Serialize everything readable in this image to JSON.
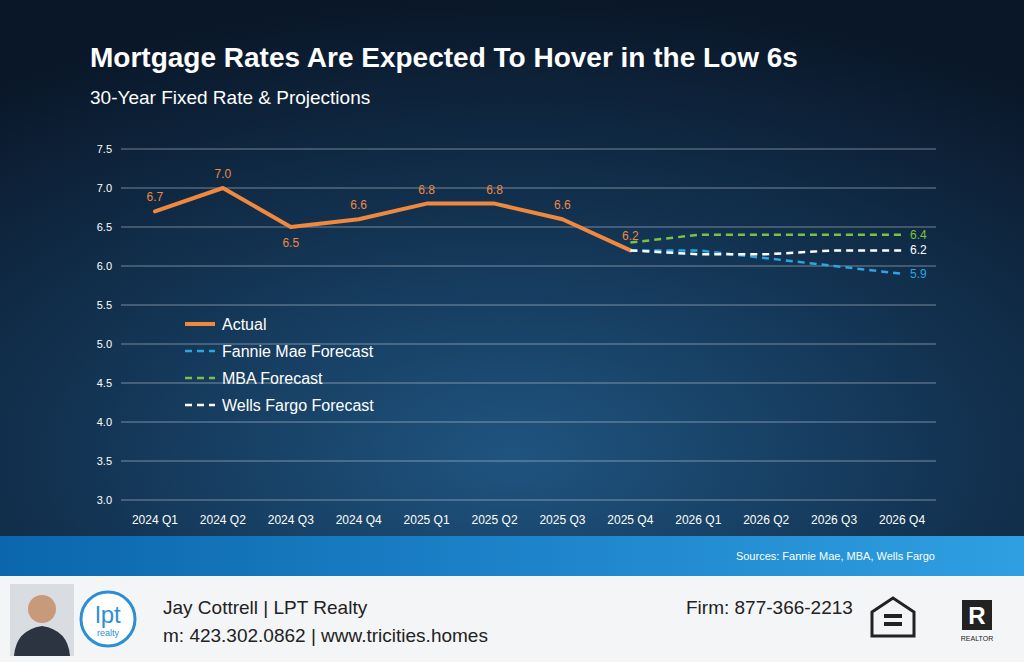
{
  "chart_data": {
    "type": "line",
    "title": "Mortgage Rates Are Expected To Hover in the Low 6s",
    "subtitle": "30-Year Fixed Rate & Projections",
    "categories": [
      "2024 Q1",
      "2024 Q2",
      "2024 Q3",
      "2024 Q4",
      "2025 Q1",
      "2025 Q2",
      "2025 Q3",
      "2025 Q4",
      "2026 Q1",
      "2026 Q2",
      "2026 Q3",
      "2026 Q4"
    ],
    "series": [
      {
        "name": "Actual",
        "color": "#f0883e",
        "line_style": "solid",
        "values": [
          6.7,
          7.0,
          6.5,
          6.6,
          6.8,
          6.8,
          6.6,
          6.2,
          null,
          null,
          null,
          null
        ],
        "value_labels": [
          "6.7",
          "7.0",
          "6.5",
          "6.6",
          "6.8",
          "6.8",
          "6.6",
          "6.2",
          null,
          null,
          null,
          null
        ]
      },
      {
        "name": "Fannie Mae Forecast",
        "color": "#2ba6e3",
        "line_style": "dashed",
        "values": [
          null,
          null,
          null,
          null,
          null,
          null,
          null,
          6.2,
          6.2,
          6.1,
          6.0,
          5.9
        ],
        "value_labels": [
          null,
          null,
          null,
          null,
          null,
          null,
          null,
          null,
          null,
          null,
          null,
          "5.9"
        ]
      },
      {
        "name": "MBA Forecast",
        "color": "#7cc242",
        "line_style": "dashed",
        "values": [
          null,
          null,
          null,
          null,
          null,
          null,
          null,
          6.3,
          6.4,
          6.4,
          6.4,
          6.4
        ],
        "value_labels": [
          null,
          null,
          null,
          null,
          null,
          null,
          null,
          null,
          null,
          null,
          null,
          "6.4"
        ]
      },
      {
        "name": "Wells Fargo Forecast",
        "color": "#ffffff",
        "line_style": "dashed",
        "values": [
          null,
          null,
          null,
          null,
          null,
          null,
          null,
          6.2,
          6.15,
          6.15,
          6.2,
          6.2
        ],
        "value_labels": [
          null,
          null,
          null,
          null,
          null,
          null,
          null,
          null,
          null,
          null,
          null,
          "6.2"
        ]
      }
    ],
    "ylim": [
      3,
      7.5
    ],
    "yticks": [
      {
        "value": 3,
        "label": "3.0"
      },
      {
        "value": 3.5,
        "label": "3.5"
      },
      {
        "value": 4,
        "label": "4.0"
      },
      {
        "value": 4.5,
        "label": "4.5"
      },
      {
        "value": 5,
        "label": "5.0"
      },
      {
        "value": 5.5,
        "label": "5.5"
      },
      {
        "value": 6,
        "label": "6.0"
      },
      {
        "value": 6.5,
        "label": "6.5"
      },
      {
        "value": 7,
        "label": "7.0"
      },
      {
        "value": 7.5,
        "label": "7.5"
      }
    ],
    "grid": true,
    "legend": "left",
    "data_labels": true,
    "source": "Sources: Fannie Mae, MBA, Wells Fargo"
  },
  "footer": {
    "logo_main": "lpt",
    "logo_sub": "realty",
    "agent": "Jay Cottrell | LPT Realty",
    "contact": "m: 423.302.0862 | www.tricities.homes",
    "firm": "Firm: 877-366-2213",
    "realtor_mark": "R",
    "realtor_label": "REALTOR"
  }
}
